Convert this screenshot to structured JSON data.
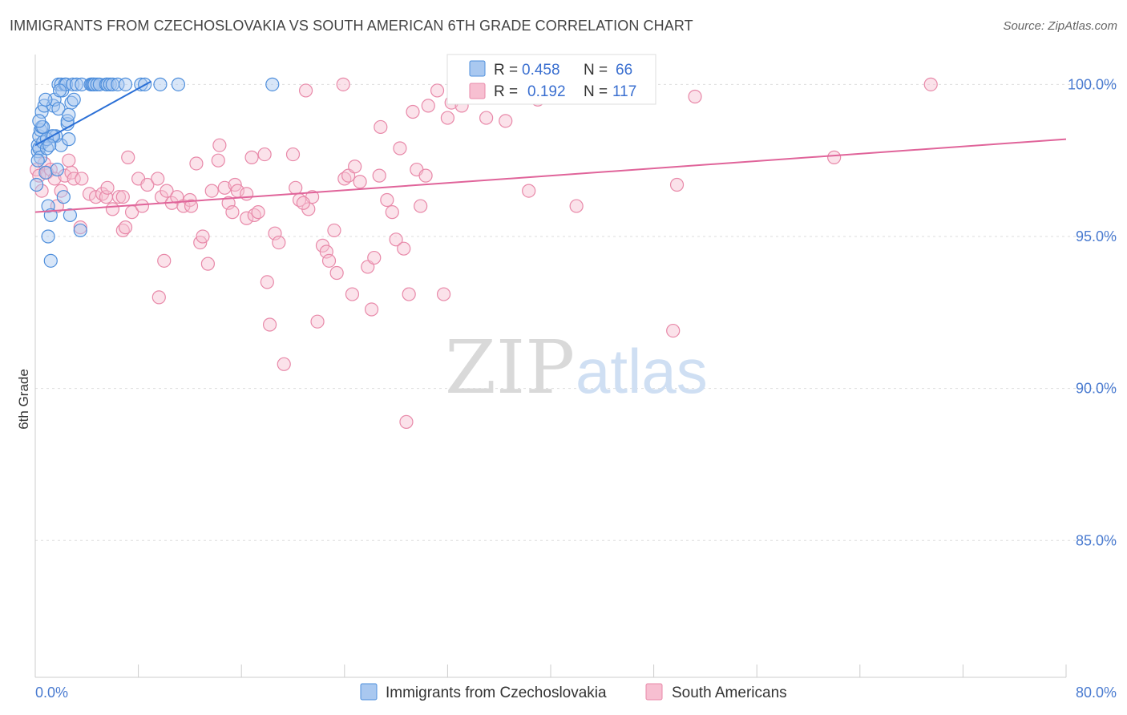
{
  "title": "IMMIGRANTS FROM CZECHOSLOVAKIA VS SOUTH AMERICAN 6TH GRADE CORRELATION CHART",
  "source": "Source: ZipAtlas.com",
  "watermark": {
    "zip": "ZIP",
    "atlas": "atlas"
  },
  "colors": {
    "blue_fill": "#a9c8f0",
    "blue_stroke": "#4f8fdc",
    "blue_line": "#2a6fd6",
    "pink_fill": "#f7bfd1",
    "pink_stroke": "#e889a9",
    "pink_line": "#e0649a",
    "tick_color": "#4a7bd0",
    "grid": "#dddddd"
  },
  "legend": {
    "rows": [
      {
        "r_label": "R =",
        "r_value": "0.458",
        "n_label": "N =",
        "n_value": "66"
      },
      {
        "r_label": "R =",
        "r_value": "0.192",
        "n_label": "N =",
        "n_value": "117"
      }
    ]
  },
  "chart_data": {
    "type": "scatter",
    "title": "IMMIGRANTS FROM CZECHOSLOVAKIA VS SOUTH AMERICAN 6TH GRADE CORRELATION CHART",
    "xlabel": "",
    "ylabel": "6th Grade",
    "xlim": [
      0,
      80
    ],
    "ylim": [
      80.5,
      100.8
    ],
    "x_tick_labels": [
      "0.0%",
      "80.0%"
    ],
    "y_ticks": [
      {
        "value": 100,
        "label": "100.0%"
      },
      {
        "value": 95,
        "label": "95.0%"
      },
      {
        "value": 90,
        "label": "90.0%"
      },
      {
        "value": 85,
        "label": "85.0%"
      }
    ],
    "grid": true,
    "series": [
      {
        "name": "Immigrants from Czechoslovakia",
        "color": "blue",
        "R": 0.458,
        "N": 66,
        "trend": {
          "x": [
            0,
            9
          ],
          "y": [
            98.0,
            100.1
          ]
        },
        "points": [
          [
            0.1,
            96.7
          ],
          [
            0.2,
            97.8
          ],
          [
            0.2,
            98.0
          ],
          [
            0.3,
            97.9
          ],
          [
            0.3,
            98.3
          ],
          [
            0.4,
            98.5
          ],
          [
            0.4,
            97.6
          ],
          [
            0.5,
            99.1
          ],
          [
            0.5,
            98.6
          ],
          [
            0.6,
            98.1
          ],
          [
            0.7,
            99.3
          ],
          [
            0.8,
            97.1
          ],
          [
            0.9,
            97.9
          ],
          [
            1.0,
            96.0
          ],
          [
            1.0,
            95.0
          ],
          [
            1.2,
            95.7
          ],
          [
            1.2,
            94.2
          ],
          [
            1.3,
            98.3
          ],
          [
            1.4,
            99.3
          ],
          [
            1.5,
            99.5
          ],
          [
            1.6,
            98.3
          ],
          [
            1.7,
            97.2
          ],
          [
            1.8,
            100.0
          ],
          [
            1.8,
            99.2
          ],
          [
            2.0,
            98.0
          ],
          [
            2.0,
            100.0
          ],
          [
            2.1,
            99.8
          ],
          [
            2.2,
            96.3
          ],
          [
            2.3,
            100.0
          ],
          [
            2.4,
            100.0
          ],
          [
            2.5,
            98.7
          ],
          [
            2.6,
            98.2
          ],
          [
            2.7,
            95.7
          ],
          [
            2.8,
            99.4
          ],
          [
            2.9,
            100.0
          ],
          [
            3.0,
            99.5
          ],
          [
            3.2,
            100.0
          ],
          [
            3.5,
            95.2
          ],
          [
            3.6,
            100.0
          ],
          [
            4.3,
            100.0
          ],
          [
            4.4,
            100.0
          ],
          [
            4.5,
            100.0
          ],
          [
            4.6,
            100.0
          ],
          [
            4.8,
            100.0
          ],
          [
            5.0,
            100.0
          ],
          [
            5.5,
            100.0
          ],
          [
            5.6,
            100.0
          ],
          [
            5.8,
            100.0
          ],
          [
            6.0,
            100.0
          ],
          [
            6.4,
            100.0
          ],
          [
            7.0,
            100.0
          ],
          [
            8.2,
            100.0
          ],
          [
            8.5,
            100.0
          ],
          [
            9.7,
            100.0
          ],
          [
            11.1,
            100.0
          ],
          [
            18.4,
            100.0
          ],
          [
            0.6,
            98.6
          ],
          [
            0.9,
            98.2
          ],
          [
            1.4,
            98.3
          ],
          [
            2.5,
            98.8
          ],
          [
            0.3,
            98.8
          ],
          [
            1.1,
            98.0
          ],
          [
            0.2,
            97.5
          ],
          [
            1.9,
            99.8
          ],
          [
            2.6,
            99.0
          ],
          [
            0.8,
            99.5
          ]
        ]
      },
      {
        "name": "South Americans",
        "color": "pink",
        "R": 0.192,
        "N": 117,
        "trend": {
          "x": [
            0,
            80
          ],
          "y": [
            95.8,
            98.2
          ]
        },
        "points": [
          [
            0.1,
            97.2
          ],
          [
            0.3,
            97.0
          ],
          [
            0.5,
            96.5
          ],
          [
            0.7,
            97.4
          ],
          [
            0.9,
            97.1
          ],
          [
            1.2,
            97.2
          ],
          [
            1.5,
            96.9
          ],
          [
            2.0,
            96.5
          ],
          [
            2.3,
            97.0
          ],
          [
            2.8,
            97.1
          ],
          [
            3.0,
            96.9
          ],
          [
            3.6,
            96.9
          ],
          [
            3.5,
            95.3
          ],
          [
            4.2,
            96.4
          ],
          [
            4.7,
            96.3
          ],
          [
            5.2,
            96.4
          ],
          [
            5.5,
            96.3
          ],
          [
            5.6,
            96.6
          ],
          [
            6.0,
            95.9
          ],
          [
            6.5,
            96.3
          ],
          [
            6.8,
            95.2
          ],
          [
            7.0,
            95.3
          ],
          [
            7.2,
            97.6
          ],
          [
            7.5,
            95.8
          ],
          [
            8.0,
            96.9
          ],
          [
            8.3,
            96.0
          ],
          [
            8.7,
            96.7
          ],
          [
            9.5,
            96.9
          ],
          [
            9.8,
            96.3
          ],
          [
            10.0,
            94.2
          ],
          [
            10.2,
            96.5
          ],
          [
            10.6,
            96.1
          ],
          [
            11.0,
            96.3
          ],
          [
            11.5,
            96.0
          ],
          [
            12.0,
            96.2
          ],
          [
            12.5,
            97.4
          ],
          [
            12.8,
            94.8
          ],
          [
            13.0,
            95.0
          ],
          [
            13.4,
            94.1
          ],
          [
            13.7,
            96.5
          ],
          [
            14.2,
            97.5
          ],
          [
            14.3,
            98.0
          ],
          [
            14.7,
            96.6
          ],
          [
            15.0,
            96.1
          ],
          [
            15.3,
            95.8
          ],
          [
            15.5,
            96.7
          ],
          [
            15.7,
            96.5
          ],
          [
            16.4,
            95.6
          ],
          [
            16.8,
            97.6
          ],
          [
            17.0,
            95.7
          ],
          [
            17.3,
            95.8
          ],
          [
            17.8,
            97.7
          ],
          [
            18.0,
            93.5
          ],
          [
            18.2,
            92.1
          ],
          [
            18.6,
            95.1
          ],
          [
            18.9,
            94.8
          ],
          [
            19.3,
            90.8
          ],
          [
            20.0,
            97.7
          ],
          [
            20.2,
            96.6
          ],
          [
            20.5,
            96.2
          ],
          [
            21.0,
            99.8
          ],
          [
            21.2,
            95.9
          ],
          [
            21.5,
            96.3
          ],
          [
            21.9,
            92.2
          ],
          [
            22.3,
            94.7
          ],
          [
            22.6,
            94.5
          ],
          [
            22.8,
            94.2
          ],
          [
            23.2,
            95.2
          ],
          [
            23.4,
            93.8
          ],
          [
            24.0,
            96.9
          ],
          [
            24.3,
            97.0
          ],
          [
            24.6,
            93.1
          ],
          [
            24.8,
            97.3
          ],
          [
            25.2,
            96.8
          ],
          [
            25.8,
            94.0
          ],
          [
            26.1,
            92.6
          ],
          [
            26.3,
            94.3
          ],
          [
            26.7,
            97.0
          ],
          [
            26.8,
            98.6
          ],
          [
            27.3,
            96.2
          ],
          [
            27.7,
            95.8
          ],
          [
            28.0,
            94.9
          ],
          [
            28.3,
            97.9
          ],
          [
            28.6,
            94.6
          ],
          [
            29.0,
            93.1
          ],
          [
            29.3,
            99.1
          ],
          [
            29.6,
            97.2
          ],
          [
            29.9,
            96.0
          ],
          [
            30.3,
            97.0
          ],
          [
            30.5,
            99.3
          ],
          [
            31.2,
            99.8
          ],
          [
            31.7,
            93.1
          ],
          [
            32.0,
            98.9
          ],
          [
            32.3,
            99.4
          ],
          [
            32.5,
            100.0
          ],
          [
            33.1,
            99.3
          ],
          [
            34.0,
            100.0
          ],
          [
            34.3,
            99.9
          ],
          [
            35.0,
            98.9
          ],
          [
            36.5,
            98.8
          ],
          [
            37.5,
            100.0
          ],
          [
            39.0,
            99.5
          ],
          [
            38.6,
            99.8
          ],
          [
            23.9,
            100.0
          ],
          [
            38.3,
            96.5
          ],
          [
            42.0,
            96.0
          ],
          [
            49.5,
            91.9
          ],
          [
            49.8,
            96.7
          ],
          [
            51.2,
            99.6
          ],
          [
            62.0,
            97.6
          ],
          [
            69.5,
            100.0
          ],
          [
            28.8,
            88.9
          ],
          [
            9.6,
            93.0
          ],
          [
            2.6,
            97.5
          ],
          [
            1.7,
            96.0
          ],
          [
            6.8,
            96.3
          ],
          [
            12.1,
            96.0
          ],
          [
            16.4,
            96.4
          ],
          [
            20.8,
            96.1
          ]
        ]
      }
    ]
  },
  "bottom_legend": [
    {
      "label": "Immigrants from Czechoslovakia"
    },
    {
      "label": "South Americans"
    }
  ]
}
